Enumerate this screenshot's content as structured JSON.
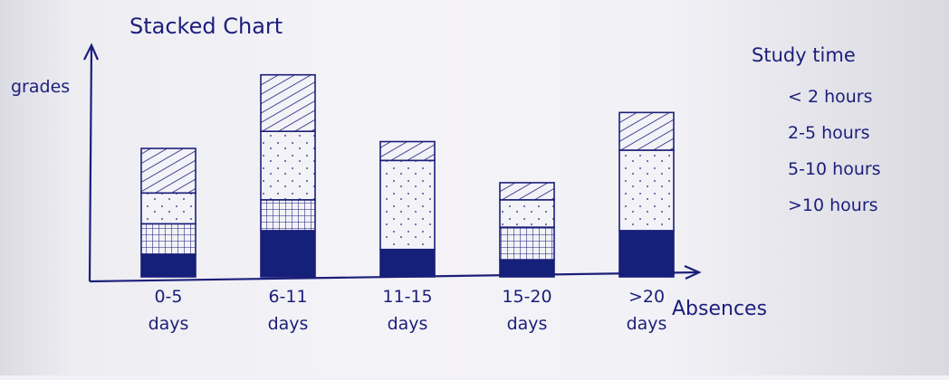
{
  "chart_data": {
    "type": "bar",
    "stacked": true,
    "title": "Stacked Chart",
    "ylabel": "grades",
    "xlabel": "Absences",
    "legend": {
      "title": "Study time",
      "position": "right"
    },
    "categories": [
      "0-5 days",
      "6-11 days",
      "11-15 days",
      "15-20 days",
      ">20 days"
    ],
    "category_lines": [
      [
        "0-5",
        "days"
      ],
      [
        "6-11",
        "days"
      ],
      [
        "11-15",
        "days"
      ],
      [
        "15-20",
        "days"
      ],
      [
        ">20",
        "days"
      ]
    ],
    "series": [
      {
        "name": ">10 hours",
        "values": [
          13,
          27,
          16,
          10,
          27
        ],
        "pattern": "solid"
      },
      {
        "name": "5-10 hours",
        "values": [
          18,
          18,
          0,
          19,
          0
        ],
        "pattern": "grid"
      },
      {
        "name": "2-5 hours",
        "values": [
          18,
          40,
          52,
          16,
          47
        ],
        "pattern": "dots"
      },
      {
        "name": "< 2 hours",
        "values": [
          26,
          33,
          11,
          10,
          22
        ],
        "pattern": "hatch"
      }
    ],
    "ylim": [
      0,
      130
    ],
    "grid": false,
    "colors": {
      "ink": "#1b1f7a",
      "fill": "#14207a",
      "paper": "#f2f1f6"
    }
  }
}
